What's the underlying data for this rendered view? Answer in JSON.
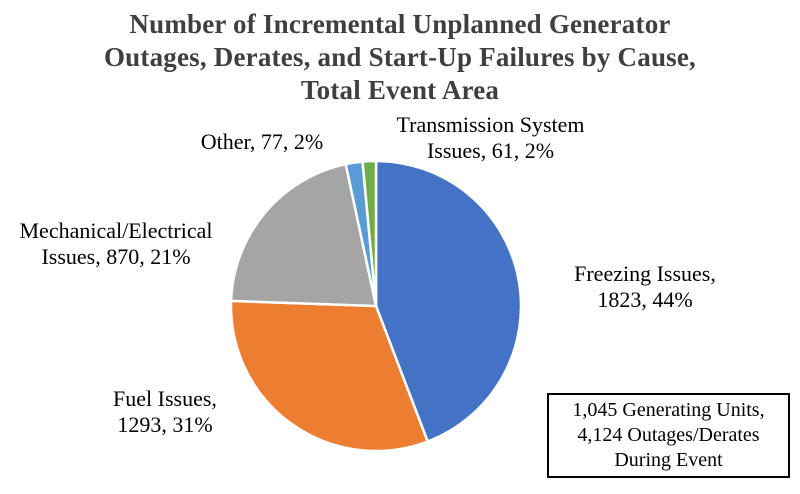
{
  "title": {
    "text": "Number of Incremental Unplanned Generator\nOutages, Derates, and Start-Up Failures by Cause,\nTotal Event Area",
    "color": "#3f3f3f"
  },
  "chart_data": {
    "type": "pie",
    "title": "Number of Incremental Unplanned Generator Outages, Derates, and Start-Up Failures by Cause, Total Event Area",
    "total": 4124,
    "start_angle_deg": 0,
    "direction": "clockwise",
    "legend": "none (callout labels around pie)",
    "slices": [
      {
        "label": "Freezing Issues",
        "value": 1823,
        "pct": "44%",
        "color": "#4472C4"
      },
      {
        "label": "Fuel Issues",
        "value": 1293,
        "pct": "31%",
        "color": "#ED7D31"
      },
      {
        "label": "Mechanical/Electrical Issues",
        "value": 870,
        "pct": "21%",
        "color": "#A5A5A5"
      },
      {
        "label": "Other",
        "value": 77,
        "pct": "2%",
        "color": "#5B9BD5"
      },
      {
        "label": "Transmission System Issues",
        "value": 61,
        "pct": "2%",
        "color": "#70AD47"
      }
    ],
    "separator_color": "#ffffff",
    "annotation": "1,045 Generating Units, 4,124 Outages/Derates During Event"
  },
  "labels": {
    "freezing": "Freezing Issues,\n1823, 44%",
    "fuel": "Fuel Issues,\n1293, 31%",
    "mechanical": "Mechanical/Electrical\nIssues, 870, 21%",
    "other": "Other, 77, 2%",
    "transmission": "Transmission System\nIssues, 61, 2%"
  },
  "annotation_box": {
    "text": "1,045 Generating Units,\n4,124 Outages/Derates\nDuring Event"
  }
}
